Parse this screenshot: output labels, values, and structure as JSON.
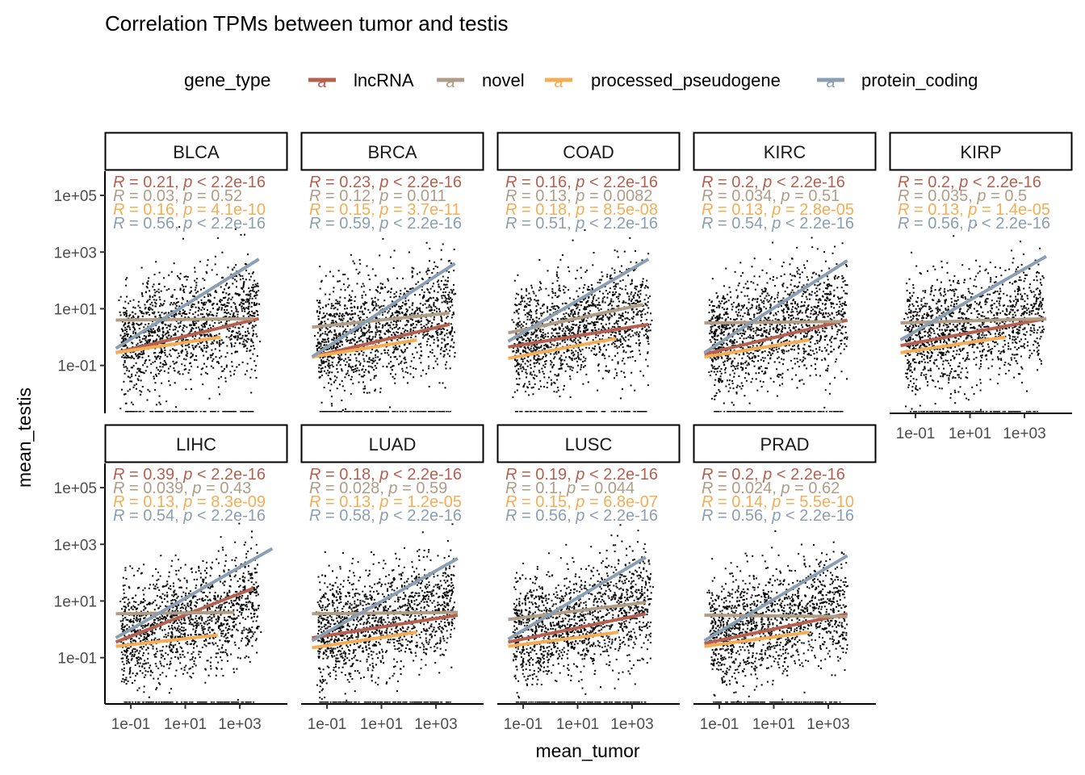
{
  "chart_data": {
    "type": "scatter",
    "title": "Correlation TPMs between tumor and testis",
    "xlabel": "mean_tumor",
    "ylabel": "mean_testis",
    "x_scale": "log10",
    "y_scale": "log10",
    "x_ticks": [
      "1e-01",
      "1e+01",
      "1e+03"
    ],
    "y_ticks": [
      "1e-01",
      "1e+01",
      "1e+03",
      "1e+05"
    ],
    "legend": {
      "title": "gene_type",
      "position": "top",
      "items": [
        {
          "name": "lncRNA",
          "color": "#b5604e"
        },
        {
          "name": "novel",
          "color": "#b09d87"
        },
        {
          "name": "processed_pseudogene",
          "color": "#f5ad55"
        },
        {
          "name": "protein_coding",
          "color": "#8b9fb2"
        }
      ]
    },
    "key_glyph": "a",
    "stat_label_template": {
      "r_symbol": "R",
      "p_symbol": "p",
      "eq": " = ",
      "lt": " < ",
      "sep": ", "
    },
    "point_color": "#000000",
    "panels": [
      {
        "name": "BLCA",
        "stats": [
          {
            "type": "lncRNA",
            "R": "0.21",
            "op": "lt",
            "p": "2.2e-16"
          },
          {
            "type": "novel",
            "R": "0.03",
            "op": "eq",
            "p": "0.52"
          },
          {
            "type": "processed_pseudogene",
            "R": "0.16",
            "op": "eq",
            "p": "4.1e-10"
          },
          {
            "type": "protein_coding",
            "R": "0.56",
            "op": "lt",
            "p": "2.2e-16"
          }
        ]
      },
      {
        "name": "BRCA",
        "stats": [
          {
            "type": "lncRNA",
            "R": "0.23",
            "op": "lt",
            "p": "2.2e-16"
          },
          {
            "type": "novel",
            "R": "0.12",
            "op": "eq",
            "p": "0.011"
          },
          {
            "type": "processed_pseudogene",
            "R": "0.15",
            "op": "eq",
            "p": "3.7e-11"
          },
          {
            "type": "protein_coding",
            "R": "0.59",
            "op": "lt",
            "p": "2.2e-16"
          }
        ]
      },
      {
        "name": "COAD",
        "stats": [
          {
            "type": "lncRNA",
            "R": "0.16",
            "op": "lt",
            "p": "2.2e-16"
          },
          {
            "type": "novel",
            "R": "0.13",
            "op": "eq",
            "p": "0.0082"
          },
          {
            "type": "processed_pseudogene",
            "R": "0.18",
            "op": "eq",
            "p": "8.5e-08"
          },
          {
            "type": "protein_coding",
            "R": "0.51",
            "op": "lt",
            "p": "2.2e-16"
          }
        ]
      },
      {
        "name": "KIRC",
        "stats": [
          {
            "type": "lncRNA",
            "R": "0.2",
            "op": "lt",
            "p": "2.2e-16"
          },
          {
            "type": "novel",
            "R": "0.034",
            "op": "eq",
            "p": "0.51"
          },
          {
            "type": "processed_pseudogene",
            "R": "0.13",
            "op": "eq",
            "p": "2.8e-05"
          },
          {
            "type": "protein_coding",
            "R": "0.54",
            "op": "lt",
            "p": "2.2e-16"
          }
        ]
      },
      {
        "name": "KIRP",
        "stats": [
          {
            "type": "lncRNA",
            "R": "0.2",
            "op": "lt",
            "p": "2.2e-16"
          },
          {
            "type": "novel",
            "R": "0.035",
            "op": "eq",
            "p": "0.5"
          },
          {
            "type": "processed_pseudogene",
            "R": "0.13",
            "op": "eq",
            "p": "1.4e-05"
          },
          {
            "type": "protein_coding",
            "R": "0.56",
            "op": "lt",
            "p": "2.2e-16"
          }
        ]
      },
      {
        "name": "LIHC",
        "stats": [
          {
            "type": "lncRNA",
            "R": "0.39",
            "op": "lt",
            "p": "2.2e-16"
          },
          {
            "type": "novel",
            "R": "0.039",
            "op": "eq",
            "p": "0.43"
          },
          {
            "type": "processed_pseudogene",
            "R": "0.13",
            "op": "eq",
            "p": "8.3e-09"
          },
          {
            "type": "protein_coding",
            "R": "0.54",
            "op": "lt",
            "p": "2.2e-16"
          }
        ]
      },
      {
        "name": "LUAD",
        "stats": [
          {
            "type": "lncRNA",
            "R": "0.18",
            "op": "lt",
            "p": "2.2e-16"
          },
          {
            "type": "novel",
            "R": "0.028",
            "op": "eq",
            "p": "0.59"
          },
          {
            "type": "processed_pseudogene",
            "R": "0.13",
            "op": "eq",
            "p": "1.2e-05"
          },
          {
            "type": "protein_coding",
            "R": "0.58",
            "op": "lt",
            "p": "2.2e-16"
          }
        ]
      },
      {
        "name": "LUSC",
        "stats": [
          {
            "type": "lncRNA",
            "R": "0.19",
            "op": "lt",
            "p": "2.2e-16"
          },
          {
            "type": "novel",
            "R": "0.1",
            "op": "eq",
            "p": "0.044"
          },
          {
            "type": "processed_pseudogene",
            "R": "0.15",
            "op": "eq",
            "p": "6.8e-07"
          },
          {
            "type": "protein_coding",
            "R": "0.56",
            "op": "lt",
            "p": "2.2e-16"
          }
        ]
      },
      {
        "name": "PRAD",
        "stats": [
          {
            "type": "lncRNA",
            "R": "0.2",
            "op": "lt",
            "p": "2.2e-16"
          },
          {
            "type": "novel",
            "R": "0.024",
            "op": "eq",
            "p": "0.62"
          },
          {
            "type": "processed_pseudogene",
            "R": "0.14",
            "op": "eq",
            "p": "5.5e-10"
          },
          {
            "type": "protein_coding",
            "R": "0.56",
            "op": "lt",
            "p": "2.2e-16"
          }
        ]
      }
    ],
    "grid": false
  }
}
